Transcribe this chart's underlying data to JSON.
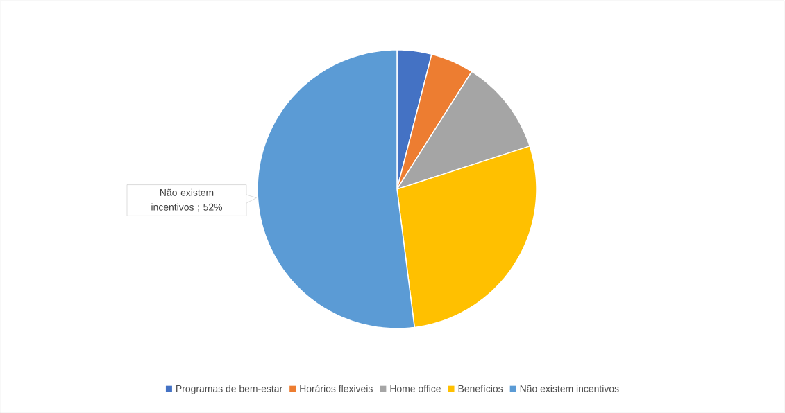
{
  "chart_data": {
    "type": "pie",
    "categories": [
      "Programas de bem-estar",
      "Horários flexiveis",
      "Home office",
      "Benefícios",
      "Não existem incentivos"
    ],
    "values": [
      4,
      5,
      11,
      28,
      52
    ],
    "colors": [
      "#4472c4",
      "#ed7d31",
      "#a5a5a5",
      "#ffc000",
      "#5b9bd5"
    ],
    "value_labels": [
      null,
      null,
      null,
      null,
      "Não existem incentivos ; 52%"
    ],
    "legend": "bottom"
  }
}
